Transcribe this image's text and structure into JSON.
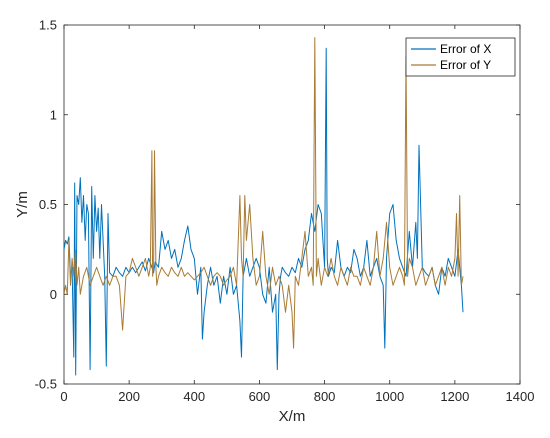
{
  "chart_data": {
    "type": "line",
    "title": "",
    "xlabel": "X/m",
    "ylabel": "Y/m",
    "xlim": [
      0,
      1400
    ],
    "ylim": [
      -0.5,
      1.5
    ],
    "xticks": [
      "0",
      "200",
      "400",
      "600",
      "800",
      "1000",
      "1200",
      "1400"
    ],
    "yticks": [
      "-0.5",
      "0",
      "0.5",
      "1",
      "1.5"
    ],
    "grid": false,
    "legend_position": "top-right",
    "series": [
      {
        "name": "Error of X",
        "color": "#0072BD",
        "x": [
          0,
          5,
          10,
          15,
          20,
          25,
          30,
          33,
          36,
          40,
          45,
          50,
          55,
          60,
          65,
          70,
          75,
          80,
          85,
          90,
          95,
          100,
          105,
          110,
          115,
          120,
          125,
          130,
          135,
          140,
          150,
          160,
          170,
          180,
          190,
          200,
          210,
          220,
          230,
          240,
          250,
          260,
          270,
          275,
          280,
          290,
          300,
          310,
          320,
          330,
          340,
          350,
          360,
          370,
          380,
          390,
          400,
          410,
          420,
          425,
          430,
          440,
          450,
          460,
          470,
          480,
          490,
          500,
          510,
          520,
          530,
          540,
          545,
          550,
          555,
          560,
          570,
          580,
          590,
          600,
          610,
          620,
          630,
          640,
          650,
          655,
          660,
          665,
          670,
          680,
          690,
          700,
          710,
          720,
          730,
          740,
          750,
          760,
          770,
          780,
          790,
          795,
          800,
          805,
          808,
          812,
          820,
          830,
          840,
          850,
          860,
          870,
          880,
          890,
          900,
          910,
          920,
          930,
          940,
          950,
          960,
          970,
          980,
          985,
          990,
          1000,
          1010,
          1020,
          1030,
          1040,
          1050,
          1060,
          1070,
          1080,
          1085,
          1090,
          1100,
          1110,
          1120,
          1130,
          1140,
          1150,
          1160,
          1170,
          1180,
          1190,
          1200,
          1210,
          1215,
          1220,
          1225
        ],
        "y": [
          0.25,
          0.3,
          0.28,
          0.32,
          0.1,
          0.15,
          -0.35,
          0.62,
          -0.45,
          0.55,
          0.5,
          0.65,
          0.4,
          0.55,
          0.3,
          0.5,
          0.45,
          -0.42,
          0.6,
          0.2,
          0.55,
          0.35,
          0.48,
          0.2,
          0.5,
          0.3,
          0.1,
          -0.4,
          0.45,
          0.12,
          0.1,
          0.15,
          0.12,
          0.1,
          0.15,
          0.12,
          0.15,
          0.12,
          0.15,
          0.18,
          0.13,
          0.2,
          0.15,
          0.12,
          0.18,
          0.15,
          0.35,
          0.25,
          0.3,
          0.2,
          0.25,
          0.15,
          0.2,
          0.3,
          0.38,
          0.25,
          0.2,
          0.0,
          0.15,
          -0.25,
          -0.1,
          0.05,
          0.15,
          0.05,
          0.1,
          -0.05,
          0.1,
          0.0,
          0.15,
          0.0,
          0.05,
          -0.15,
          -0.35,
          0.1,
          0.15,
          0.2,
          0.1,
          0.15,
          0.2,
          0.15,
          0.0,
          -0.05,
          0.15,
          -0.1,
          0.0,
          -0.42,
          0.0,
          0.1,
          0.15,
          0.12,
          0.1,
          0.15,
          0.12,
          0.2,
          0.15,
          0.25,
          0.3,
          0.45,
          0.35,
          0.5,
          0.45,
          0.3,
          0.15,
          1.37,
          0.2,
          0.1,
          0.15,
          0.12,
          0.3,
          0.15,
          0.1,
          0.15,
          0.12,
          0.25,
          0.2,
          0.1,
          0.15,
          0.3,
          0.1,
          0.15,
          0.2,
          0.1,
          0.05,
          -0.3,
          0.2,
          0.45,
          0.5,
          0.3,
          0.2,
          0.15,
          0.1,
          0.35,
          0.15,
          0.4,
          0.2,
          0.83,
          0.15,
          0.12,
          0.1,
          0.15,
          0.05,
          0.0,
          0.15,
          0.1,
          0.2,
          0.15,
          0.1,
          0.25,
          0.15,
          0.05,
          -0.1
        ]
      },
      {
        "name": "Error of Y",
        "color": "#A97B35",
        "x": [
          0,
          5,
          10,
          15,
          20,
          25,
          30,
          35,
          40,
          45,
          50,
          60,
          70,
          80,
          90,
          100,
          110,
          120,
          130,
          140,
          150,
          160,
          170,
          180,
          190,
          200,
          210,
          220,
          230,
          240,
          250,
          260,
          265,
          270,
          272,
          275,
          278,
          282,
          285,
          290,
          300,
          310,
          320,
          330,
          340,
          350,
          360,
          370,
          380,
          390,
          400,
          410,
          420,
          430,
          440,
          450,
          460,
          470,
          480,
          490,
          500,
          510,
          520,
          530,
          540,
          545,
          550,
          555,
          560,
          570,
          580,
          590,
          600,
          610,
          620,
          630,
          640,
          650,
          660,
          670,
          680,
          690,
          700,
          705,
          710,
          720,
          730,
          740,
          750,
          760,
          765,
          770,
          775,
          780,
          790,
          800,
          810,
          820,
          830,
          840,
          850,
          860,
          870,
          880,
          890,
          900,
          910,
          920,
          930,
          940,
          950,
          960,
          970,
          980,
          990,
          1000,
          1010,
          1020,
          1030,
          1040,
          1045,
          1050,
          1055,
          1060,
          1070,
          1080,
          1090,
          1100,
          1110,
          1120,
          1130,
          1140,
          1150,
          1160,
          1170,
          1180,
          1190,
          1200,
          1205,
          1210,
          1215,
          1220,
          1225
        ],
        "y": [
          0.0,
          0.05,
          0.0,
          0.3,
          0.05,
          0.2,
          0.1,
          0.25,
          0.05,
          0.15,
          0.0,
          0.1,
          0.15,
          0.05,
          0.1,
          0.15,
          0.1,
          0.05,
          0.1,
          0.05,
          0.1,
          0.1,
          0.05,
          -0.2,
          0.1,
          0.12,
          0.2,
          0.15,
          0.1,
          0.15,
          0.2,
          0.1,
          0.15,
          0.8,
          0.1,
          0.15,
          0.8,
          0.15,
          0.05,
          0.1,
          0.15,
          0.12,
          0.1,
          0.15,
          0.12,
          0.1,
          0.15,
          0.1,
          0.12,
          0.1,
          0.08,
          0.1,
          0.12,
          0.15,
          0.1,
          0.05,
          0.1,
          0.12,
          0.1,
          0.05,
          0.08,
          0.1,
          0.15,
          0.05,
          0.55,
          0.2,
          0.1,
          0.55,
          0.3,
          0.5,
          0.2,
          0.05,
          0.1,
          0.35,
          0.1,
          0.0,
          0.15,
          0.05,
          0.1,
          0.05,
          -0.1,
          0.05,
          -0.1,
          -0.3,
          0.1,
          0.05,
          0.2,
          0.35,
          0.1,
          0.15,
          0.05,
          1.43,
          0.1,
          0.2,
          0.05,
          0.15,
          0.1,
          0.2,
          0.1,
          0.05,
          0.15,
          0.1,
          0.05,
          0.15,
          0.1,
          0.1,
          0.05,
          0.15,
          0.1,
          0.05,
          0.15,
          0.35,
          0.1,
          0.2,
          0.4,
          0.15,
          0.05,
          0.1,
          0.15,
          0.1,
          0.05,
          1.33,
          0.1,
          0.2,
          0.15,
          0.05,
          0.1,
          0.15,
          0.05,
          0.1,
          0.15,
          0.05,
          0.1,
          0.15,
          0.05,
          0.15,
          0.1,
          0.2,
          0.45,
          0.1,
          0.55,
          0.05,
          0.1
        ]
      }
    ]
  }
}
